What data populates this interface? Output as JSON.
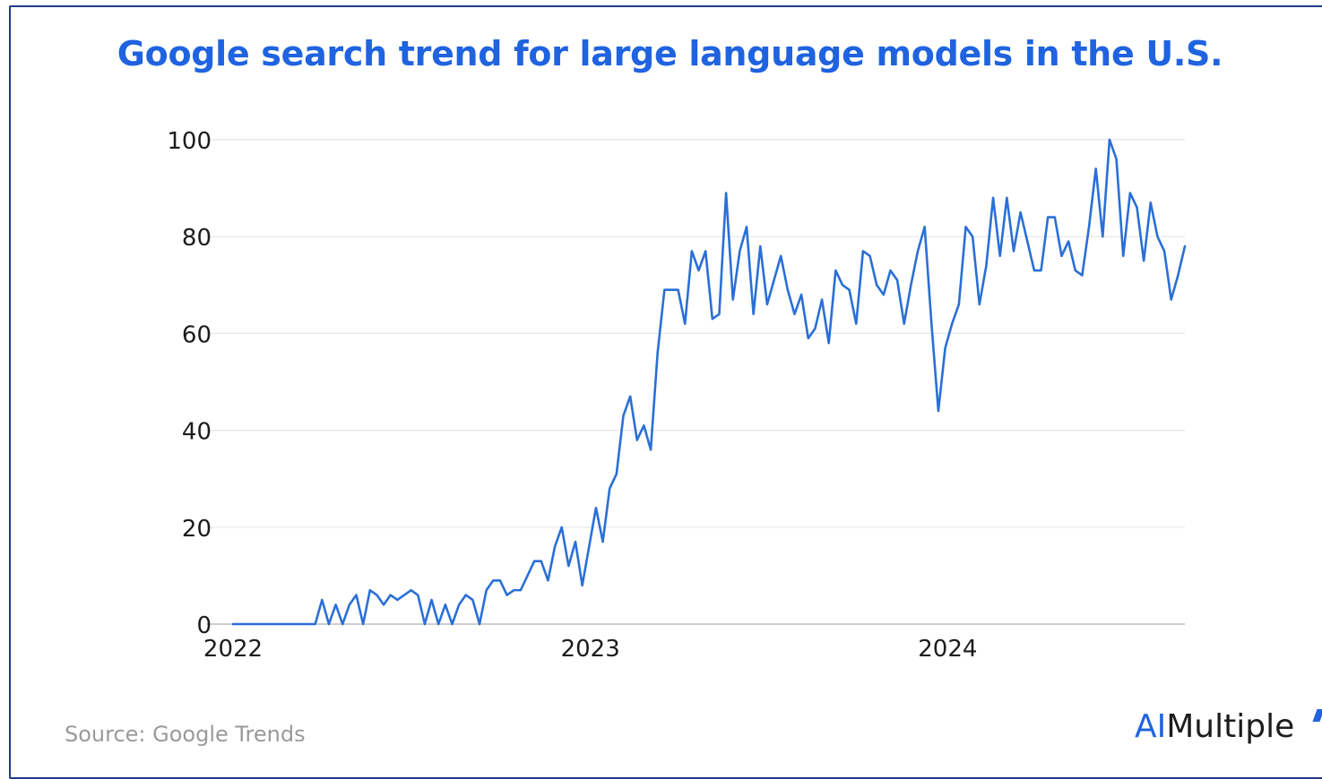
{
  "title": "Google search trend for large language models in the U.S.",
  "source": "Source: Google Trends",
  "logo": {
    "ai": "AI",
    "rest": "Multiple",
    "name": "AIMultiple"
  },
  "colors": {
    "accent": "#1f63e0",
    "line": "#2a6fd6",
    "grid": "#e6e6e6",
    "frame": "#1f3a8a"
  },
  "chart_data": {
    "type": "line",
    "title": "Google search trend for large language models in the U.S.",
    "xlabel": "",
    "ylabel": "",
    "ylim": [
      0,
      100
    ],
    "yticks": [
      0,
      20,
      40,
      60,
      80,
      100
    ],
    "xticks": [
      "2022",
      "2023",
      "2024"
    ],
    "grid": true,
    "legend": "none",
    "x_description": "weekly samples from Jan 2022 to Aug 2024",
    "series": [
      {
        "values": [
          0,
          0,
          0,
          0,
          0,
          0,
          0,
          0,
          0,
          0,
          0,
          0,
          0,
          5,
          0,
          4,
          0,
          4,
          6,
          0,
          7,
          6,
          4,
          6,
          5,
          6,
          7,
          6,
          0,
          5,
          0,
          4,
          0,
          4,
          6,
          5,
          0,
          7,
          9,
          9,
          6,
          7,
          7,
          10,
          13,
          13,
          9,
          16,
          20,
          12,
          17,
          8,
          16,
          24,
          17,
          28,
          31,
          43,
          47,
          38,
          41,
          36,
          56,
          69,
          69,
          69,
          62,
          77,
          73,
          77,
          63,
          64,
          89,
          67,
          77,
          82,
          64,
          78,
          66,
          71,
          76,
          69,
          64,
          68,
          59,
          61,
          67,
          58,
          73,
          70,
          69,
          62,
          77,
          76,
          70,
          68,
          73,
          71,
          62,
          70,
          77,
          82,
          62,
          44,
          57,
          62,
          66,
          82,
          80,
          66,
          74,
          88,
          76,
          88,
          77,
          85,
          79,
          73,
          73,
          84,
          84,
          76,
          79,
          73,
          72,
          82,
          94,
          80,
          100,
          96,
          76,
          89,
          86,
          75,
          87,
          80,
          77,
          67,
          72,
          78
        ]
      }
    ]
  }
}
